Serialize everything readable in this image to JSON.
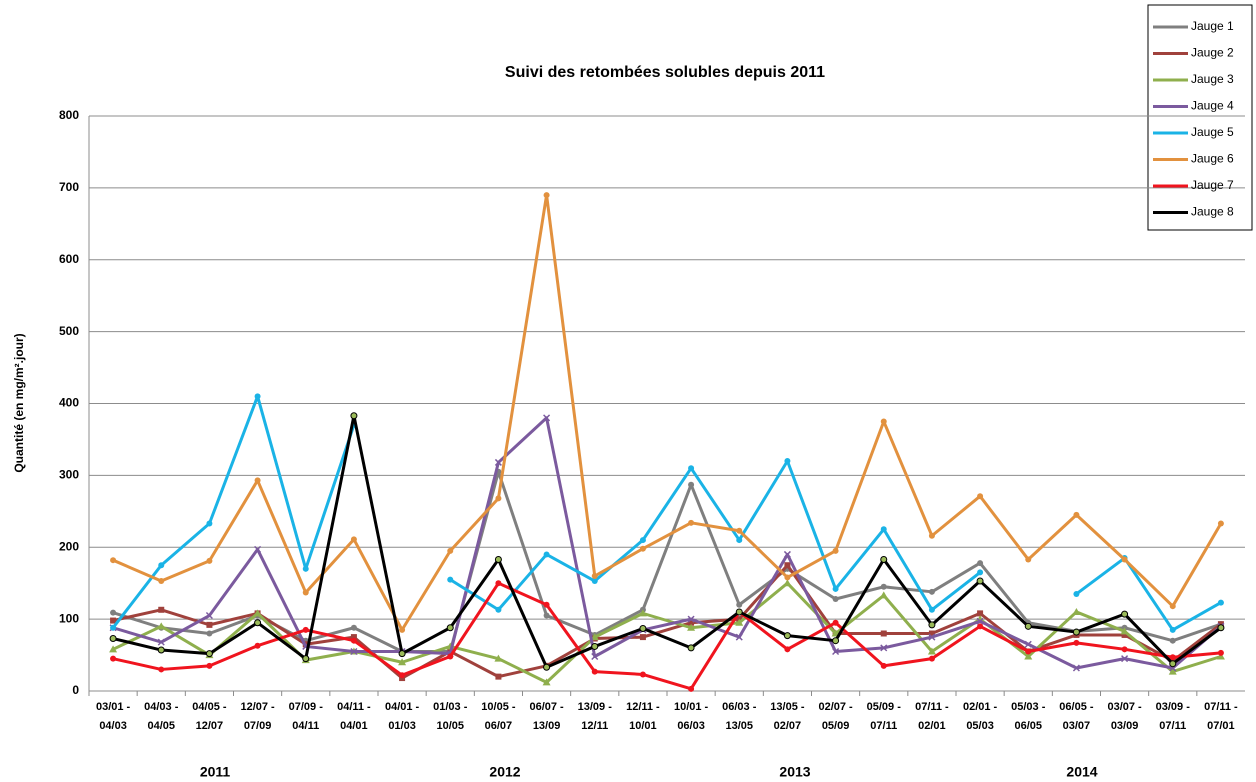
{
  "chart_data": {
    "type": "line",
    "title": "Suivi des retombées solubles depuis 2011",
    "y_label": "Quantité (en mg/m².jour)",
    "categories": [
      "03/01 - 04/03",
      "04/03 - 04/05",
      "04/05 - 12/07",
      "12/07 - 07/09",
      "07/09 - 04/11",
      "04/11 - 04/01",
      "04/01 - 01/03",
      "01/03 - 10/05",
      "10/05 - 06/07",
      "06/07 - 13/09",
      "13/09 - 12/11",
      "12/11 - 10/01",
      "10/01 - 06/03",
      "06/03 - 13/05",
      "13/05 - 02/07",
      "02/07 - 05/09",
      "05/09 - 07/11",
      "07/11 - 02/01",
      "02/01 - 05/03",
      "05/03 - 06/05",
      "06/05 - 03/07",
      "03/07 - 03/09",
      "03/09 - 07/11",
      "07/11 - 07/01"
    ],
    "years": [
      "2011",
      "2012",
      "2013",
      "2014"
    ],
    "ylim": [
      0,
      800
    ],
    "yticks": [
      0,
      100,
      200,
      300,
      400,
      500,
      600,
      700,
      800
    ],
    "grid": true,
    "legend": "top-right",
    "series": [
      {
        "name": "Jauge 1",
        "color": "#7f7f7f",
        "values": [
          109,
          88,
          80,
          105,
          70,
          88,
          55,
          55,
          305,
          105,
          78,
          113,
          287,
          120,
          170,
          128,
          145,
          138,
          178,
          95,
          83,
          88,
          70,
          93
        ]
      },
      {
        "name": "Jauge 2",
        "color": "#a0413c",
        "values": [
          98,
          113,
          92,
          108,
          65,
          75,
          18,
          55,
          20,
          35,
          73,
          75,
          95,
          100,
          175,
          80,
          80,
          80,
          108,
          55,
          78,
          78,
          42,
          93
        ]
      },
      {
        "name": "Jauge 3",
        "color": "#8faf4d",
        "values": [
          58,
          90,
          50,
          108,
          43,
          55,
          40,
          62,
          45,
          12,
          75,
          108,
          88,
          95,
          150,
          80,
          133,
          55,
          100,
          48,
          110,
          83,
          27,
          48
        ]
      },
      {
        "name": "Jauge 4",
        "color": "#7b5a9e",
        "values": [
          88,
          68,
          105,
          197,
          62,
          55,
          55,
          52,
          318,
          380,
          48,
          85,
          100,
          75,
          190,
          55,
          60,
          75,
          97,
          65,
          32,
          45,
          32,
          90
        ]
      },
      {
        "name": "Jauge 5",
        "color": "#1ab3e6",
        "values": [
          88,
          175,
          233,
          410,
          170,
          370,
          null,
          155,
          113,
          190,
          153,
          210,
          310,
          210,
          320,
          142,
          225,
          113,
          165,
          null,
          135,
          185,
          85,
          123
        ]
      },
      {
        "name": "Jauge 6",
        "color": "#e2913e",
        "values": [
          182,
          153,
          181,
          293,
          137,
          211,
          85,
          195,
          268,
          690,
          160,
          198,
          234,
          223,
          158,
          195,
          375,
          216,
          271,
          183,
          245,
          183,
          118,
          233
        ]
      },
      {
        "name": "Jauge 7",
        "color": "#f0141e",
        "values": [
          45,
          30,
          35,
          63,
          85,
          70,
          22,
          48,
          150,
          120,
          27,
          23,
          3,
          110,
          58,
          95,
          35,
          45,
          90,
          55,
          67,
          58,
          47,
          53
        ]
      },
      {
        "name": "Jauge 8",
        "color": "#000000",
        "values": [
          73,
          57,
          52,
          95,
          45,
          383,
          52,
          88,
          183,
          33,
          62,
          87,
          60,
          110,
          77,
          70,
          183,
          92,
          153,
          90,
          82,
          107,
          38,
          88
        ]
      }
    ]
  }
}
